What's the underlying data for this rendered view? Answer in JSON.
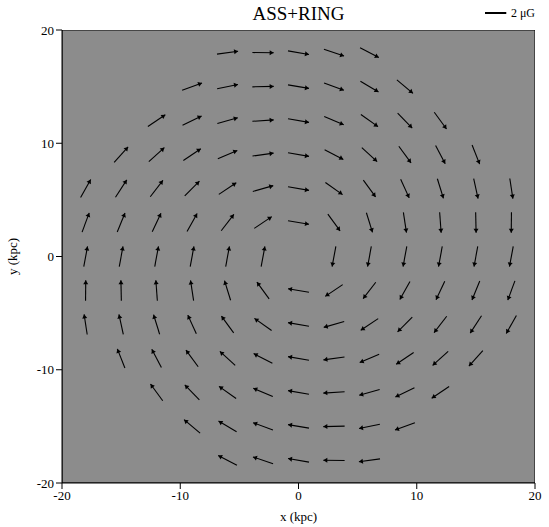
{
  "chart_data": {
    "type": "quiver",
    "title": "ASS+RING",
    "x_label": "x (kpc)",
    "y_label": "y (kpc)",
    "xlim": [
      -20,
      20
    ],
    "ylim": [
      -20,
      20
    ],
    "xticks": [
      -20,
      -10,
      0,
      10,
      20
    ],
    "yticks": [
      -20,
      -10,
      0,
      10,
      20
    ],
    "color": "#000000",
    "scale_bar": {
      "value": 2,
      "label": "2 μG"
    },
    "vectors": [
      [
        3,
        0,
        -0.35,
        -1.97
      ],
      [
        3,
        3,
        1.15,
        -1.64
      ],
      [
        3,
        6,
        1.61,
        -1.19
      ],
      [
        3,
        9,
        1.76,
        -0.95
      ],
      [
        3,
        12,
        1.83,
        -0.82
      ],
      [
        3,
        15,
        1.86,
        -0.73
      ],
      [
        3,
        18,
        1.89,
        -0.67
      ],
      [
        6,
        0,
        -0.35,
        -1.97
      ],
      [
        6,
        3,
        0.57,
        -1.92
      ],
      [
        6,
        6,
        1.15,
        -1.64
      ],
      [
        6,
        9,
        1.44,
        -1.38
      ],
      [
        6,
        12,
        1.61,
        -1.19
      ],
      [
        6,
        15,
        1.7,
        -1.06
      ],
      [
        6,
        18,
        1.76,
        -0.95
      ],
      [
        9,
        0,
        -0.35,
        -1.97
      ],
      [
        9,
        3,
        0.29,
        -1.98
      ],
      [
        9,
        6,
        0.8,
        -1.83
      ],
      [
        9,
        9,
        1.15,
        -1.64
      ],
      [
        9,
        12,
        1.37,
        -1.46
      ],
      [
        9,
        15,
        1.51,
        -1.31
      ],
      [
        12,
        0,
        -0.35,
        -1.97
      ],
      [
        12,
        3,
        0.14,
        -2.0
      ],
      [
        12,
        6,
        0.57,
        -1.92
      ],
      [
        12,
        9,
        0.9,
        -1.79
      ],
      [
        12,
        12,
        1.15,
        -1.64
      ],
      [
        15,
        0,
        -0.35,
        -1.97
      ],
      [
        15,
        3,
        0.04,
        -2.0
      ],
      [
        15,
        6,
        0.41,
        -1.96
      ],
      [
        15,
        9,
        0.71,
        -1.87
      ],
      [
        18,
        0,
        -0.35,
        -1.97
      ],
      [
        18,
        3,
        -0.02,
        -2.0
      ],
      [
        18,
        6,
        0.29,
        -1.98
      ],
      [
        0,
        3,
        1.97,
        -0.35
      ],
      [
        -3,
        3,
        1.64,
        1.15
      ],
      [
        -6,
        3,
        1.19,
        1.61
      ],
      [
        -9,
        3,
        0.95,
        1.76
      ],
      [
        -12,
        3,
        0.82,
        1.83
      ],
      [
        -15,
        3,
        0.73,
        1.86
      ],
      [
        -18,
        3,
        0.67,
        1.89
      ],
      [
        0,
        6,
        1.97,
        -0.35
      ],
      [
        -3,
        6,
        1.92,
        0.57
      ],
      [
        -6,
        6,
        1.64,
        1.15
      ],
      [
        -9,
        6,
        1.38,
        1.44
      ],
      [
        -12,
        6,
        1.19,
        1.61
      ],
      [
        -15,
        6,
        1.06,
        1.7
      ],
      [
        -18,
        6,
        0.95,
        1.76
      ],
      [
        0,
        9,
        1.97,
        -0.35
      ],
      [
        -3,
        9,
        1.98,
        0.29
      ],
      [
        -6,
        9,
        1.83,
        0.8
      ],
      [
        -9,
        9,
        1.64,
        1.15
      ],
      [
        -12,
        9,
        1.46,
        1.37
      ],
      [
        -15,
        9,
        1.31,
        1.51
      ],
      [
        0,
        12,
        1.97,
        -0.35
      ],
      [
        -3,
        12,
        2.0,
        0.14
      ],
      [
        -6,
        12,
        1.92,
        0.57
      ],
      [
        -9,
        12,
        1.79,
        0.9
      ],
      [
        -12,
        12,
        1.64,
        1.15
      ],
      [
        0,
        15,
        1.97,
        -0.35
      ],
      [
        -3,
        15,
        2.0,
        0.04
      ],
      [
        -6,
        15,
        1.96,
        0.41
      ],
      [
        -9,
        15,
        1.87,
        0.71
      ],
      [
        0,
        18,
        1.97,
        -0.35
      ],
      [
        -3,
        18,
        2.0,
        -0.02
      ],
      [
        -6,
        18,
        1.98,
        0.29
      ],
      [
        -3,
        0,
        0.35,
        1.97
      ],
      [
        -3,
        -3,
        -1.15,
        1.64
      ],
      [
        -3,
        -6,
        -1.61,
        1.19
      ],
      [
        -3,
        -9,
        -1.76,
        0.95
      ],
      [
        -3,
        -12,
        -1.83,
        0.82
      ],
      [
        -3,
        -15,
        -1.86,
        0.73
      ],
      [
        -3,
        -18,
        -1.89,
        0.67
      ],
      [
        -6,
        0,
        0.35,
        1.97
      ],
      [
        -6,
        -3,
        -0.57,
        1.92
      ],
      [
        -6,
        -6,
        -1.15,
        1.64
      ],
      [
        -6,
        -9,
        -1.44,
        1.38
      ],
      [
        -6,
        -12,
        -1.61,
        1.19
      ],
      [
        -6,
        -15,
        -1.7,
        1.06
      ],
      [
        -6,
        -18,
        -1.76,
        0.95
      ],
      [
        -9,
        0,
        0.35,
        1.97
      ],
      [
        -9,
        -3,
        -0.29,
        1.98
      ],
      [
        -9,
        -6,
        -0.8,
        1.83
      ],
      [
        -9,
        -9,
        -1.15,
        1.64
      ],
      [
        -9,
        -12,
        -1.37,
        1.46
      ],
      [
        -9,
        -15,
        -1.51,
        1.31
      ],
      [
        -12,
        0,
        0.35,
        1.97
      ],
      [
        -12,
        -3,
        -0.14,
        2.0
      ],
      [
        -12,
        -6,
        -0.57,
        1.92
      ],
      [
        -12,
        -9,
        -0.9,
        1.79
      ],
      [
        -12,
        -12,
        -1.15,
        1.64
      ],
      [
        -15,
        0,
        0.35,
        1.97
      ],
      [
        -15,
        -3,
        -0.04,
        2.0
      ],
      [
        -15,
        -6,
        -0.41,
        1.96
      ],
      [
        -15,
        -9,
        -0.71,
        1.87
      ],
      [
        -18,
        0,
        0.35,
        1.97
      ],
      [
        -18,
        -3,
        0.02,
        2.0
      ],
      [
        -18,
        -6,
        -0.29,
        1.98
      ],
      [
        0,
        -3,
        -1.97,
        0.35
      ],
      [
        3,
        -3,
        -1.64,
        -1.15
      ],
      [
        6,
        -3,
        -1.19,
        -1.61
      ],
      [
        9,
        -3,
        -0.95,
        -1.76
      ],
      [
        12,
        -3,
        -0.82,
        -1.83
      ],
      [
        15,
        -3,
        -0.73,
        -1.86
      ],
      [
        18,
        -3,
        -0.67,
        -1.89
      ],
      [
        0,
        -6,
        -1.97,
        0.35
      ],
      [
        3,
        -6,
        -1.92,
        -0.57
      ],
      [
        6,
        -6,
        -1.64,
        -1.15
      ],
      [
        9,
        -6,
        -1.38,
        -1.44
      ],
      [
        12,
        -6,
        -1.19,
        -1.61
      ],
      [
        15,
        -6,
        -1.06,
        -1.7
      ],
      [
        18,
        -6,
        -0.95,
        -1.76
      ],
      [
        0,
        -9,
        -1.97,
        0.35
      ],
      [
        3,
        -9,
        -1.98,
        -0.29
      ],
      [
        6,
        -9,
        -1.83,
        -0.8
      ],
      [
        9,
        -9,
        -1.64,
        -1.15
      ],
      [
        12,
        -9,
        -1.46,
        -1.37
      ],
      [
        15,
        -9,
        -1.31,
        -1.51
      ],
      [
        0,
        -12,
        -1.97,
        0.35
      ],
      [
        3,
        -12,
        -2.0,
        -0.14
      ],
      [
        6,
        -12,
        -1.92,
        -0.57
      ],
      [
        9,
        -12,
        -1.79,
        -0.9
      ],
      [
        12,
        -12,
        -1.64,
        -1.15
      ],
      [
        0,
        -15,
        -1.97,
        0.35
      ],
      [
        3,
        -15,
        -2.0,
        -0.04
      ],
      [
        6,
        -15,
        -1.96,
        -0.41
      ],
      [
        9,
        -15,
        -1.87,
        -0.71
      ],
      [
        0,
        -18,
        -1.97,
        0.35
      ],
      [
        3,
        -18,
        -2.0,
        0.02
      ],
      [
        6,
        -18,
        -1.98,
        -0.29
      ]
    ]
  }
}
